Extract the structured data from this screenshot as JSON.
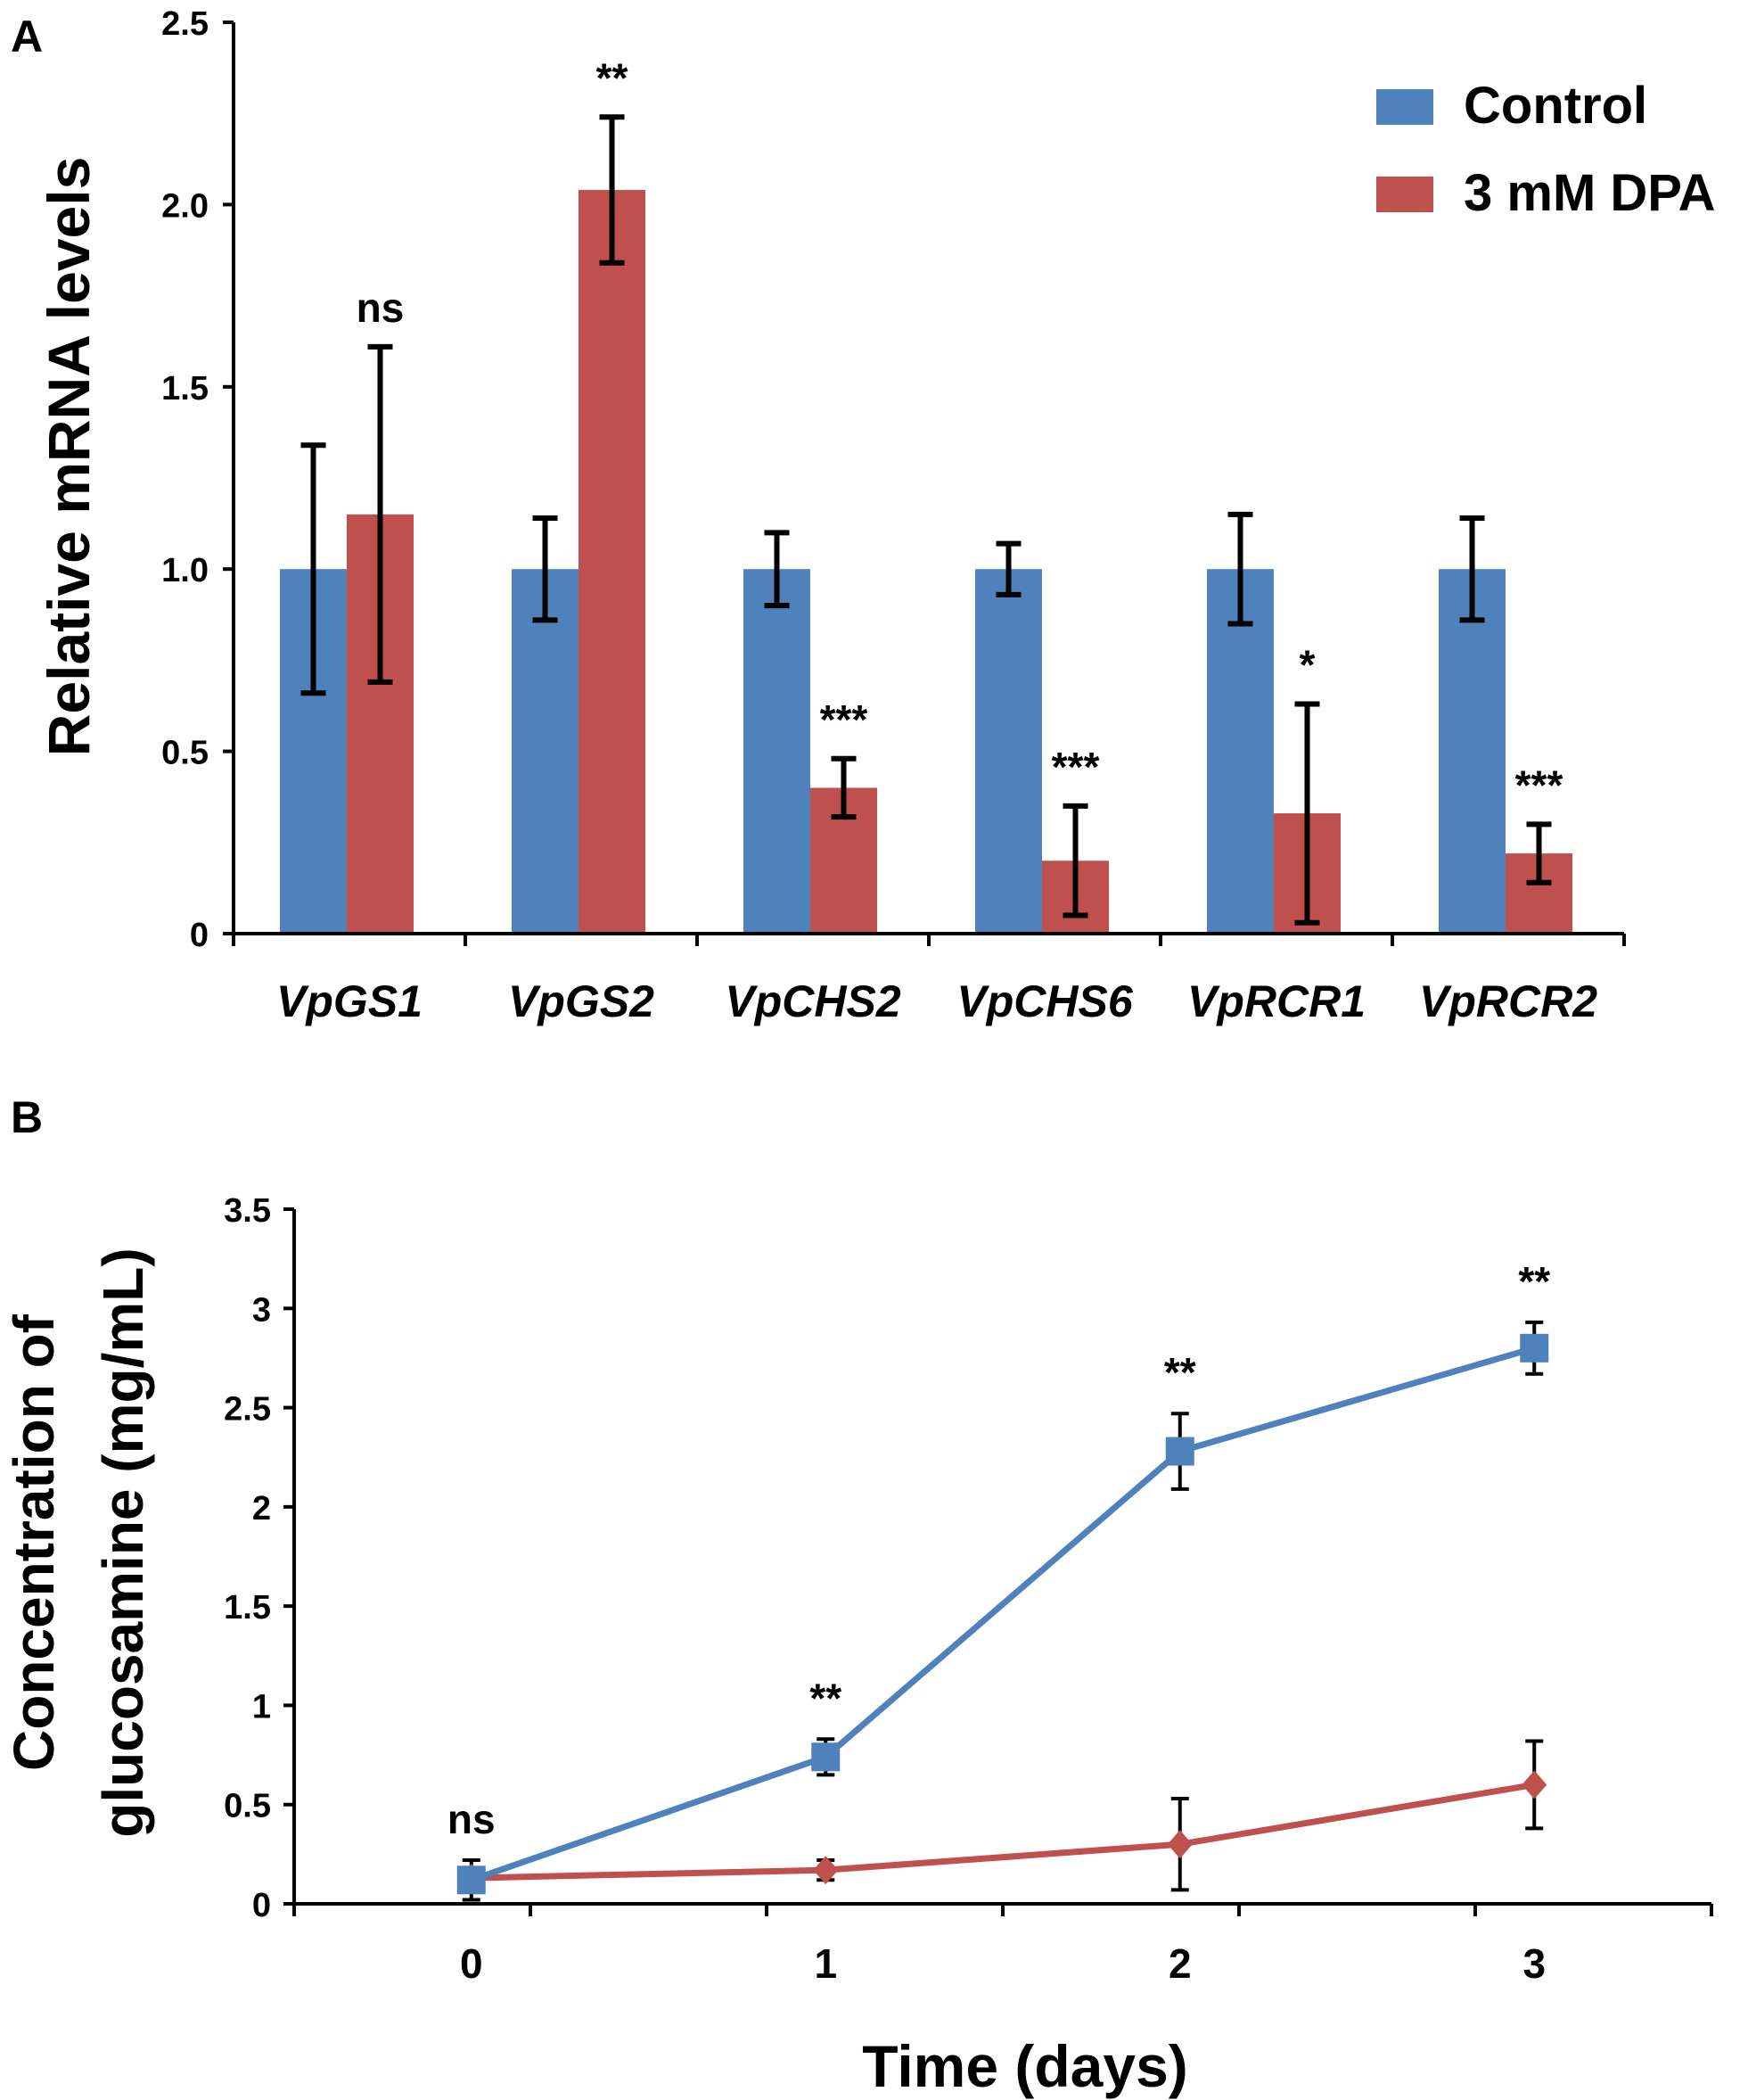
{
  "colors": {
    "control": "#4f81bd",
    "dpa": "#c0504d",
    "axis": "#000000"
  },
  "chart_data": [
    {
      "panel_label": "A",
      "type": "bar",
      "title": "",
      "xlabel": "",
      "ylabel": "Relative mRNA levels",
      "ylim": [
        0,
        2.5
      ],
      "yticks": [
        0,
        0.5,
        1.0,
        1.5,
        2.0,
        2.5
      ],
      "ytick_labels": [
        "0",
        "0.5",
        "1.0",
        "1.5",
        "2.0",
        "2.5"
      ],
      "categories": [
        "VpGS1",
        "VpGS2",
        "VpCHS2",
        "VpCHS6",
        "VpRCR1",
        "VpRCR2"
      ],
      "legend": {
        "position": "top-right",
        "entries": [
          "Control",
          "3 mM DPA"
        ]
      },
      "series": [
        {
          "name": "Control",
          "values": [
            1.0,
            1.0,
            1.0,
            1.0,
            1.0,
            1.0
          ],
          "errors": [
            0.34,
            0.14,
            0.1,
            0.07,
            0.15,
            0.14
          ]
        },
        {
          "name": "3 mM DPA",
          "values": [
            1.15,
            2.04,
            0.4,
            0.2,
            0.33,
            0.22
          ],
          "errors": [
            0.46,
            0.2,
            0.08,
            0.15,
            0.3,
            0.08
          ]
        }
      ],
      "annotations": [
        "ns",
        "**",
        "***",
        "***",
        "*",
        "***"
      ]
    },
    {
      "panel_label": "B",
      "type": "line",
      "title": "",
      "xlabel": "Time (days)",
      "ylabel_lines": [
        "Concentration of",
        "glucosamine (mg/mL)"
      ],
      "x": [
        0,
        1,
        2,
        3
      ],
      "xlim": [
        -0.5,
        3.5
      ],
      "xtick_labels": [
        "0",
        "1",
        "2",
        "3"
      ],
      "ylim": [
        0,
        3.5
      ],
      "yticks": [
        0,
        0.5,
        1,
        1.5,
        2,
        2.5,
        3,
        3.5
      ],
      "ytick_labels": [
        "0",
        "0.5",
        "1",
        "1.5",
        "2",
        "2.5",
        "3",
        "3.5"
      ],
      "series": [
        {
          "name": "Control",
          "marker": "square",
          "values": [
            0.12,
            0.74,
            2.28,
            2.8
          ],
          "errors": [
            0.1,
            0.09,
            0.19,
            0.13
          ]
        },
        {
          "name": "3 mM DPA",
          "marker": "diamond",
          "values": [
            0.13,
            0.17,
            0.3,
            0.6
          ],
          "errors": [
            0.05,
            0.05,
            0.23,
            0.22
          ]
        }
      ],
      "annotations": [
        "ns",
        "**",
        "**",
        "**"
      ]
    }
  ]
}
